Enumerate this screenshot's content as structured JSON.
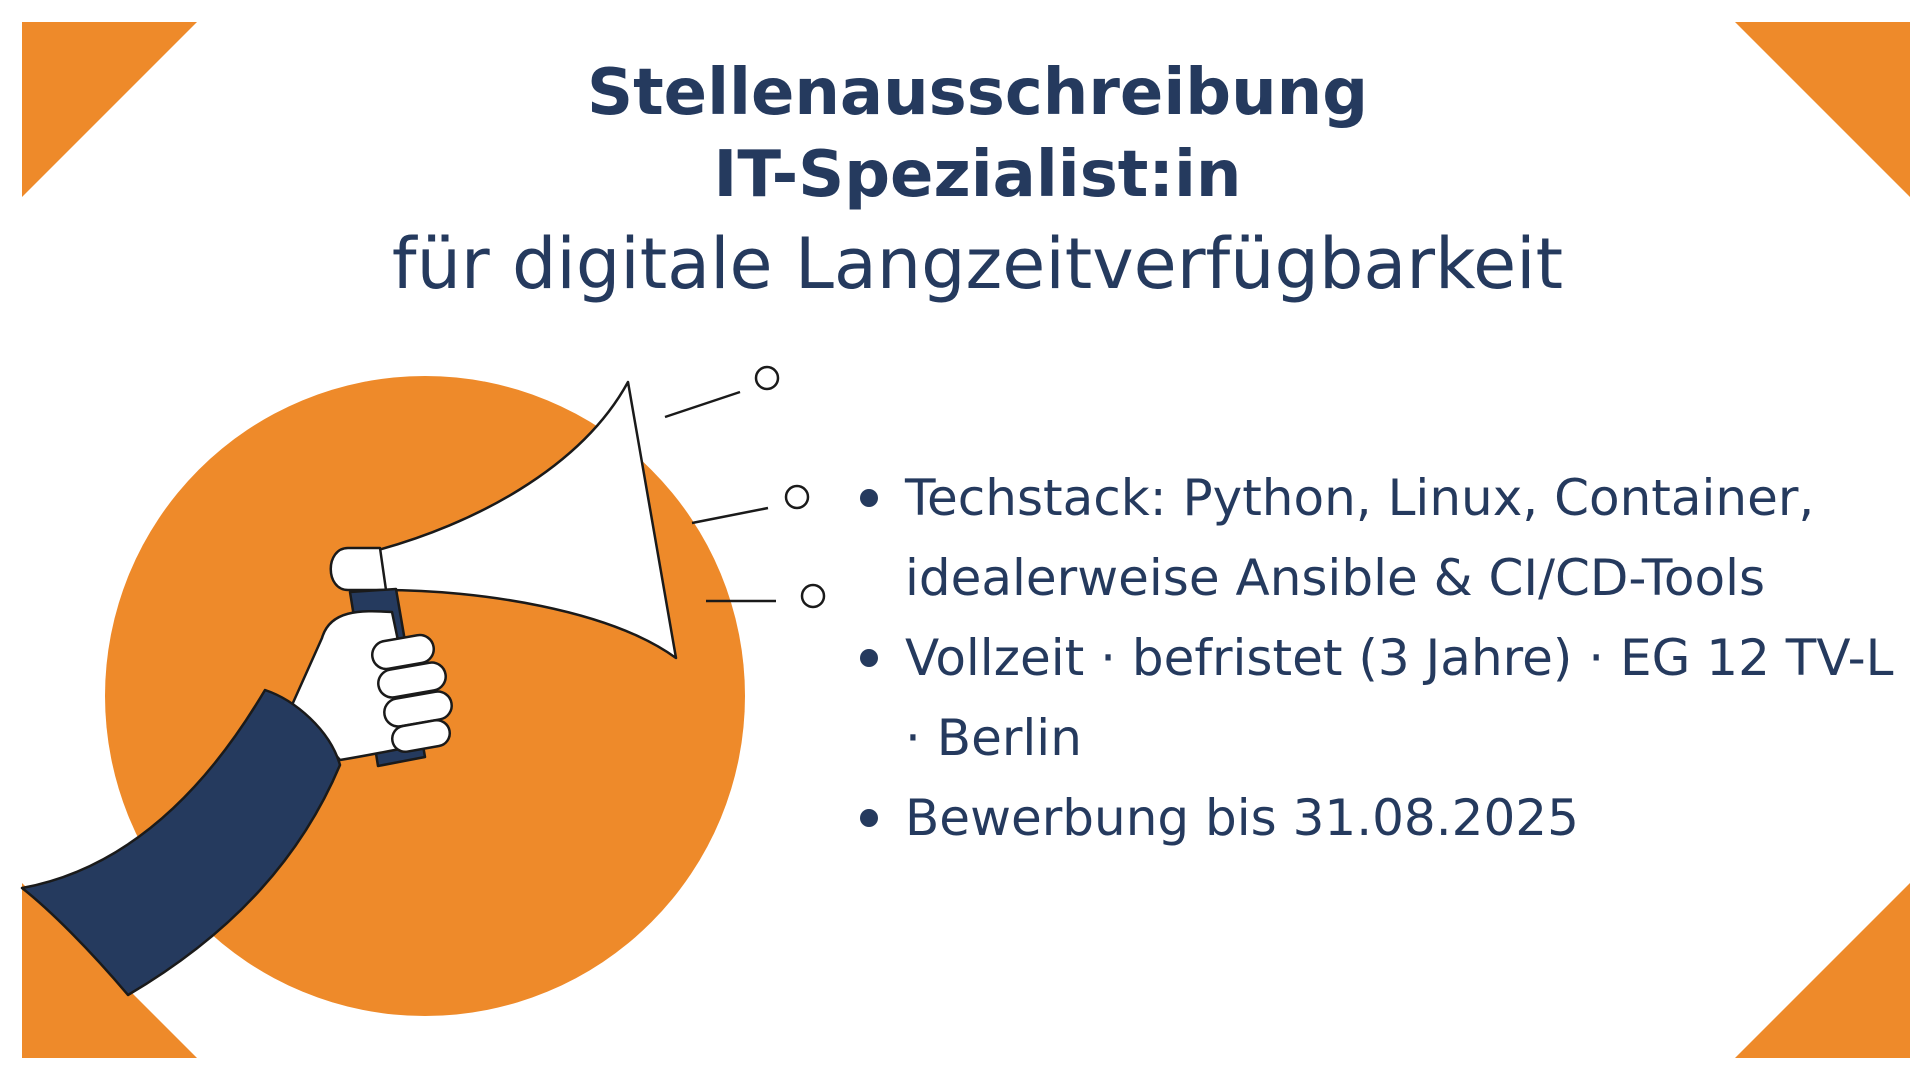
{
  "colors": {
    "accent_orange": "#ee8a2a",
    "navy": "#253a5e",
    "background": "#ffffff"
  },
  "heading": {
    "line1": "Stellenausschreibung",
    "line2": "IT-Spezialist:in",
    "line3": "für digitale Langzeitverfügbarkeit"
  },
  "illustration": {
    "icon": "megaphone-in-hand-icon"
  },
  "facts": [
    {
      "text": "Techstack: Python, Linux, Container, idealerweise Ansible & CI/CD-Tools"
    },
    {
      "text": "Vollzeit · befristet (3 Jahre) · EG 12 TV-L · Berlin"
    },
    {
      "text": "Bewerbung bis 31.08.2025"
    }
  ]
}
